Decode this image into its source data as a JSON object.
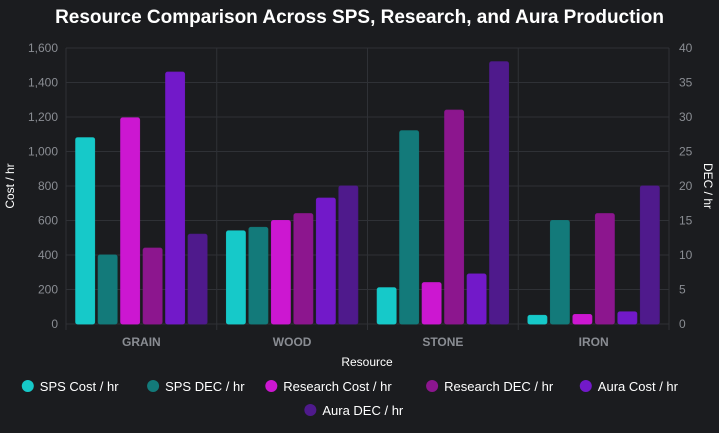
{
  "chart_data": {
    "type": "bar",
    "title": "Resource Comparison Across SPS, Research, and Aura Production",
    "xlabel": "Resource",
    "ylabel_left": "Cost / hr",
    "ylabel_right": "DEC / hr",
    "categories": [
      "GRAIN",
      "WOOD",
      "STONE",
      "IRON"
    ],
    "ylim_left": [
      0,
      1600
    ],
    "ylim_right": [
      0,
      40
    ],
    "yticks_left": [
      "0",
      "200",
      "400",
      "600",
      "800",
      "1,000",
      "1,200",
      "1,400",
      "1,600"
    ],
    "yticks_right": [
      "0",
      "5",
      "10",
      "15",
      "20",
      "25",
      "30",
      "35",
      "40"
    ],
    "grid": true,
    "legend_position": "bottom",
    "series": [
      {
        "name": "SPS Cost / hr",
        "axis": "left",
        "color": "#16c9c9",
        "values": [
          1080,
          540,
          210,
          50
        ]
      },
      {
        "name": "SPS DEC / hr",
        "axis": "right",
        "color": "#137a7a",
        "values": [
          10,
          14,
          28,
          15
        ]
      },
      {
        "name": "Research Cost / hr",
        "axis": "left",
        "color": "#cc17d1",
        "values": [
          1195,
          600,
          240,
          55
        ]
      },
      {
        "name": "Research DEC / hr",
        "axis": "right",
        "color": "#8c168e",
        "values": [
          11,
          16,
          31,
          16
        ]
      },
      {
        "name": "Aura Cost / hr",
        "axis": "left",
        "color": "#7219c9",
        "values": [
          1460,
          730,
          290,
          70
        ]
      },
      {
        "name": "Aura DEC / hr",
        "axis": "right",
        "color": "#4f1a8c",
        "values": [
          13,
          20,
          38,
          20
        ]
      }
    ]
  }
}
